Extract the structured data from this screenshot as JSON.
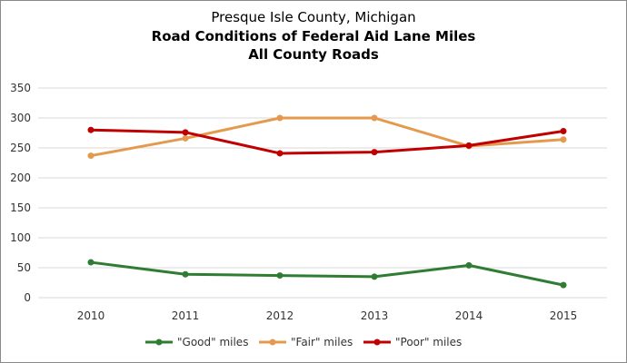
{
  "chart_data": {
    "type": "line",
    "title": "Presque Isle County, Michigan",
    "subtitle": [
      "Road Conditions of Federal Aid Lane Miles",
      "All County Roads"
    ],
    "xlabel": "",
    "ylabel": "",
    "categories": [
      "2010",
      "2011",
      "2012",
      "2013",
      "2014",
      "2015"
    ],
    "ylim": [
      0,
      350
    ],
    "yticks": [
      0,
      50,
      100,
      150,
      200,
      250,
      300,
      350
    ],
    "grid": true,
    "legend": "bottom",
    "series": [
      {
        "name": "\"Good\" miles",
        "color": "#2e7d32",
        "values": [
          59,
          39,
          37,
          35,
          54,
          21
        ]
      },
      {
        "name": "\"Fair\" miles",
        "color": "#e39a4f",
        "values": [
          237,
          266,
          300,
          300,
          253,
          264
        ]
      },
      {
        "name": "\"Poor\" miles",
        "color": "#c00000",
        "values": [
          280,
          276,
          241,
          243,
          254,
          278
        ]
      }
    ]
  }
}
